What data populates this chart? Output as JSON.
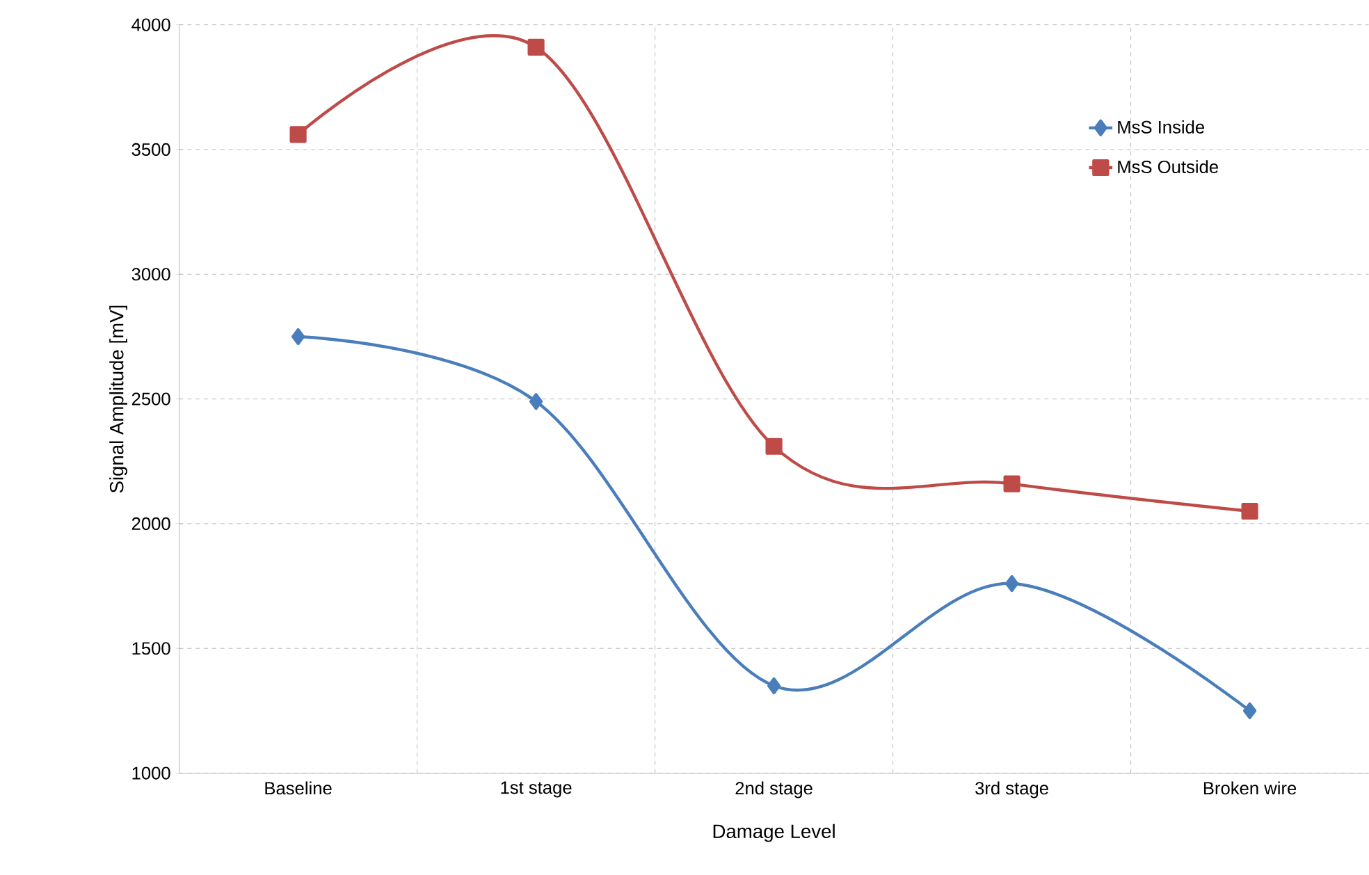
{
  "chart_data": {
    "type": "line",
    "xlabel": "Damage Level",
    "ylabel": "Signal Amplitude [mV]",
    "categories": [
      "Baseline",
      "1st stage",
      "2nd stage",
      "3rd stage",
      "Broken wire"
    ],
    "series": [
      {
        "name": "MsS Inside",
        "color": "#4a7ebb",
        "marker": "diamond",
        "values": [
          2750,
          2490,
          1350,
          1760,
          1250
        ]
      },
      {
        "name": "MsS Outside",
        "color": "#be4b48",
        "marker": "square",
        "values": [
          3560,
          3910,
          2310,
          2160,
          2050
        ]
      }
    ],
    "ylim": [
      1000,
      4000
    ],
    "yticks": [
      1000,
      1500,
      2000,
      2500,
      3000,
      3500,
      4000
    ],
    "grid": true,
    "legend": "top right"
  }
}
